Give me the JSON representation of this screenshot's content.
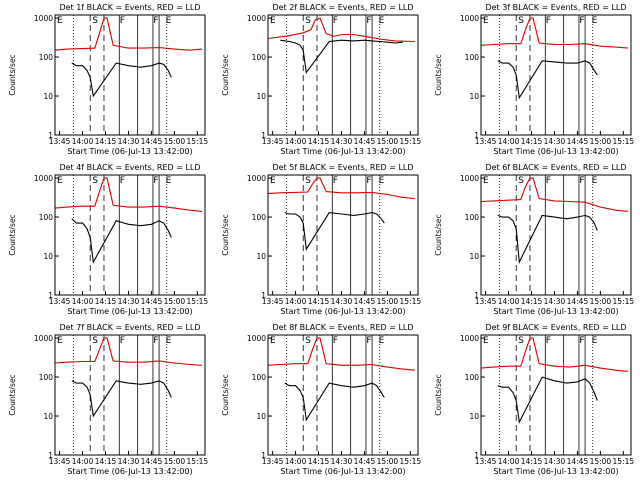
{
  "common": {
    "ylabel": "Counts/sec",
    "xlabel": "Start Time (06-Jul-13 13:42:00)",
    "x_tick_labels": [
      "13:45",
      "14:00",
      "14:15",
      "14:30",
      "14:45",
      "15:00",
      "15:15"
    ],
    "y_tick_labels": [
      "1",
      "10",
      "100",
      "1000"
    ],
    "band_labels": [
      "E",
      "S",
      "F",
      "F",
      "E"
    ],
    "colors": {
      "events": "#000000",
      "lld": "#dd0000"
    }
  },
  "chart_data": [
    {
      "type": "line",
      "title": "Det 1f BLACK = Events, RED = LLD",
      "xlabel": "Start Time (06-Jul-13 13:42:00)",
      "ylabel": "Counts/sec",
      "xlim": [
        "13:42",
        "15:20"
      ],
      "ylim": [
        1,
        1200
      ],
      "scale": "log",
      "series": [
        {
          "name": "Events",
          "color": "#000000",
          "x": [
            "13:53",
            "13:56",
            "14:00",
            "14:03",
            "14:05",
            "14:07",
            "14:22",
            "14:30",
            "14:38",
            "14:45",
            "14:50",
            "14:53",
            "14:56",
            "14:58"
          ],
          "y": [
            70,
            60,
            60,
            45,
            30,
            10,
            70,
            60,
            55,
            60,
            70,
            65,
            45,
            30
          ]
        },
        {
          "name": "LLD",
          "color": "#dd0000",
          "x": [
            "13:42",
            "13:50",
            "14:00",
            "14:08",
            "14:11",
            "14:14",
            "14:16",
            "14:20",
            "14:30",
            "14:40",
            "14:50",
            "15:00",
            "15:10",
            "15:18"
          ],
          "y": [
            150,
            160,
            165,
            170,
            400,
            1000,
            1000,
            200,
            170,
            170,
            175,
            160,
            150,
            160
          ]
        }
      ]
    },
    {
      "type": "line",
      "title": "Det 2f BLACK = Events, RED = LLD",
      "xlabel": "Start Time (06-Jul-13 13:42:00)",
      "ylabel": "Counts/sec",
      "xlim": [
        "13:42",
        "15:20"
      ],
      "ylim": [
        1,
        1200
      ],
      "scale": "log",
      "series": [
        {
          "name": "Events",
          "color": "#000000",
          "x": [
            "13:50",
            "13:56",
            "14:00",
            "14:03",
            "14:05",
            "14:07",
            "14:22",
            "14:30",
            "14:38",
            "14:45",
            "14:50",
            "14:55",
            "15:00",
            "15:05",
            "15:10"
          ],
          "y": [
            270,
            250,
            230,
            200,
            150,
            40,
            250,
            270,
            260,
            270,
            260,
            250,
            240,
            230,
            240
          ]
        },
        {
          "name": "LLD",
          "color": "#dd0000",
          "x": [
            "13:42",
            "13:55",
            "14:05",
            "14:10",
            "14:13",
            "14:16",
            "14:20",
            "14:25",
            "14:30",
            "14:38",
            "14:45",
            "14:55",
            "15:05",
            "15:18"
          ],
          "y": [
            300,
            350,
            420,
            500,
            900,
            1000,
            400,
            340,
            380,
            380,
            340,
            290,
            260,
            250
          ]
        }
      ]
    },
    {
      "type": "line",
      "title": "Det 3f BLACK = Events, RED = LLD",
      "xlabel": "Start Time (06-Jul-13 13:42:00)",
      "ylabel": "Counts/sec",
      "xlim": [
        "13:42",
        "15:20"
      ],
      "ylim": [
        1,
        1200
      ],
      "scale": "log",
      "series": [
        {
          "name": "Events",
          "color": "#000000",
          "x": [
            "13:53",
            "13:56",
            "14:00",
            "14:03",
            "14:05",
            "14:07",
            "14:22",
            "14:30",
            "14:38",
            "14:45",
            "14:50",
            "14:53",
            "14:56",
            "14:58"
          ],
          "y": [
            80,
            70,
            70,
            55,
            35,
            9,
            80,
            75,
            70,
            70,
            80,
            70,
            45,
            35
          ]
        },
        {
          "name": "LLD",
          "color": "#dd0000",
          "x": [
            "13:42",
            "13:50",
            "14:00",
            "14:08",
            "14:11",
            "14:14",
            "14:16",
            "14:20",
            "14:30",
            "14:40",
            "14:50",
            "15:00",
            "15:10",
            "15:18"
          ],
          "y": [
            200,
            210,
            220,
            220,
            500,
            1000,
            1000,
            230,
            210,
            210,
            220,
            190,
            180,
            170
          ]
        }
      ]
    },
    {
      "type": "line",
      "title": "Det 4f BLACK = Events, RED = LLD",
      "xlabel": "Start Time (06-Jul-13 13:42:00)",
      "ylabel": "Counts/sec",
      "xlim": [
        "13:42",
        "15:20"
      ],
      "ylim": [
        1,
        1200
      ],
      "scale": "log",
      "series": [
        {
          "name": "Events",
          "color": "#000000",
          "x": [
            "13:53",
            "13:56",
            "14:00",
            "14:03",
            "14:05",
            "14:07",
            "14:22",
            "14:30",
            "14:38",
            "14:45",
            "14:50",
            "14:53",
            "14:56",
            "14:58"
          ],
          "y": [
            90,
            70,
            70,
            50,
            30,
            7,
            80,
            65,
            60,
            65,
            80,
            70,
            45,
            30
          ]
        },
        {
          "name": "LLD",
          "color": "#dd0000",
          "x": [
            "13:42",
            "13:50",
            "14:00",
            "14:08",
            "14:11",
            "14:14",
            "14:16",
            "14:20",
            "14:30",
            "14:40",
            "14:50",
            "15:00",
            "15:10",
            "15:18"
          ],
          "y": [
            170,
            180,
            190,
            190,
            450,
            1000,
            1000,
            200,
            180,
            180,
            190,
            170,
            150,
            140
          ]
        }
      ]
    },
    {
      "type": "line",
      "title": "Det 5f BLACK = Events, RED = LLD",
      "xlabel": "Start Time (06-Jul-13 13:42:00)",
      "ylabel": "Counts/sec",
      "xlim": [
        "13:42",
        "15:20"
      ],
      "ylim": [
        1,
        1200
      ],
      "scale": "log",
      "series": [
        {
          "name": "Events",
          "color": "#000000",
          "x": [
            "13:53",
            "13:56",
            "14:00",
            "14:03",
            "14:05",
            "14:07",
            "14:22",
            "14:30",
            "14:38",
            "14:45",
            "14:50",
            "14:53",
            "14:56",
            "14:58"
          ],
          "y": [
            130,
            120,
            120,
            100,
            70,
            15,
            130,
            120,
            110,
            120,
            130,
            120,
            90,
            70
          ]
        },
        {
          "name": "LLD",
          "color": "#dd0000",
          "x": [
            "13:42",
            "13:50",
            "14:00",
            "14:08",
            "14:11",
            "14:14",
            "14:16",
            "14:20",
            "14:30",
            "14:40",
            "14:50",
            "15:00",
            "15:10",
            "15:18"
          ],
          "y": [
            400,
            420,
            430,
            440,
            700,
            1000,
            1000,
            450,
            420,
            420,
            430,
            380,
            320,
            300
          ]
        }
      ]
    },
    {
      "type": "line",
      "title": "Det 6f BLACK = Events, RED = LLD",
      "xlabel": "Start Time (06-Jul-13 13:42:00)",
      "ylabel": "Counts/sec",
      "xlim": [
        "13:42",
        "15:20"
      ],
      "ylim": [
        1,
        1200
      ],
      "scale": "log",
      "series": [
        {
          "name": "Events",
          "color": "#000000",
          "x": [
            "13:53",
            "13:56",
            "14:00",
            "14:03",
            "14:05",
            "14:07",
            "14:22",
            "14:30",
            "14:38",
            "14:45",
            "14:50",
            "14:53",
            "14:56",
            "14:58"
          ],
          "y": [
            110,
            100,
            100,
            80,
            50,
            7,
            110,
            100,
            90,
            100,
            110,
            100,
            70,
            45
          ]
        },
        {
          "name": "LLD",
          "color": "#dd0000",
          "x": [
            "13:42",
            "13:50",
            "14:00",
            "14:08",
            "14:11",
            "14:14",
            "14:16",
            "14:20",
            "14:30",
            "14:40",
            "14:50",
            "15:00",
            "15:10",
            "15:18"
          ],
          "y": [
            250,
            260,
            270,
            280,
            600,
            1000,
            1000,
            300,
            260,
            250,
            240,
            180,
            150,
            140
          ]
        }
      ]
    },
    {
      "type": "line",
      "title": "Det 7f BLACK = Events, RED = LLD",
      "xlabel": "Start Time (06-Jul-13 13:42:00)",
      "ylabel": "Counts/sec",
      "xlim": [
        "13:42",
        "15:20"
      ],
      "ylim": [
        1,
        1200
      ],
      "scale": "log",
      "series": [
        {
          "name": "Events",
          "color": "#000000",
          "x": [
            "13:53",
            "13:56",
            "14:00",
            "14:03",
            "14:05",
            "14:07",
            "14:22",
            "14:30",
            "14:38",
            "14:45",
            "14:50",
            "14:53",
            "14:56",
            "14:58"
          ],
          "y": [
            80,
            70,
            70,
            55,
            35,
            10,
            80,
            70,
            65,
            70,
            80,
            70,
            45,
            30
          ]
        },
        {
          "name": "LLD",
          "color": "#dd0000",
          "x": [
            "13:42",
            "13:50",
            "14:00",
            "14:08",
            "14:11",
            "14:14",
            "14:16",
            "14:20",
            "14:30",
            "14:40",
            "14:50",
            "15:00",
            "15:10",
            "15:18"
          ],
          "y": [
            230,
            240,
            250,
            250,
            500,
            1000,
            1000,
            260,
            240,
            240,
            260,
            230,
            210,
            200
          ]
        }
      ]
    },
    {
      "type": "line",
      "title": "Det 8f BLACK = Events, RED = LLD",
      "xlabel": "Start Time (06-Jul-13 13:42:00)",
      "ylabel": "Counts/sec",
      "xlim": [
        "13:42",
        "15:20"
      ],
      "ylim": [
        1,
        1200
      ],
      "scale": "log",
      "series": [
        {
          "name": "Events",
          "color": "#000000",
          "x": [
            "13:53",
            "13:56",
            "14:00",
            "14:03",
            "14:05",
            "14:07",
            "14:22",
            "14:30",
            "14:38",
            "14:45",
            "14:50",
            "14:53",
            "14:56",
            "14:58"
          ],
          "y": [
            70,
            60,
            60,
            45,
            30,
            8,
            70,
            60,
            55,
            60,
            70,
            60,
            40,
            30
          ]
        },
        {
          "name": "LLD",
          "color": "#dd0000",
          "x": [
            "13:42",
            "13:50",
            "14:00",
            "14:08",
            "14:11",
            "14:14",
            "14:16",
            "14:20",
            "14:30",
            "14:40",
            "14:50",
            "15:00",
            "15:10",
            "15:18"
          ],
          "y": [
            200,
            210,
            220,
            220,
            500,
            1000,
            1000,
            220,
            200,
            200,
            210,
            180,
            160,
            150
          ]
        }
      ]
    },
    {
      "type": "line",
      "title": "Det 9f BLACK = Events, RED = LLD",
      "xlabel": "Start Time (06-Jul-13 13:42:00)",
      "ylabel": "Counts/sec",
      "xlim": [
        "13:42",
        "15:20"
      ],
      "ylim": [
        1,
        1200
      ],
      "scale": "log",
      "series": [
        {
          "name": "Events",
          "color": "#000000",
          "x": [
            "13:53",
            "13:56",
            "14:00",
            "14:03",
            "14:05",
            "14:07",
            "14:22",
            "14:30",
            "14:38",
            "14:45",
            "14:50",
            "14:53",
            "14:56",
            "14:58"
          ],
          "y": [
            60,
            55,
            55,
            40,
            25,
            7,
            100,
            80,
            70,
            75,
            90,
            70,
            40,
            25
          ]
        },
        {
          "name": "LLD",
          "color": "#dd0000",
          "x": [
            "13:42",
            "13:50",
            "14:00",
            "14:08",
            "14:11",
            "14:14",
            "14:16",
            "14:20",
            "14:30",
            "14:40",
            "14:50",
            "15:00",
            "15:10",
            "15:18"
          ],
          "y": [
            170,
            180,
            190,
            190,
            450,
            1000,
            1000,
            220,
            190,
            180,
            200,
            170,
            150,
            140
          ]
        }
      ]
    }
  ]
}
